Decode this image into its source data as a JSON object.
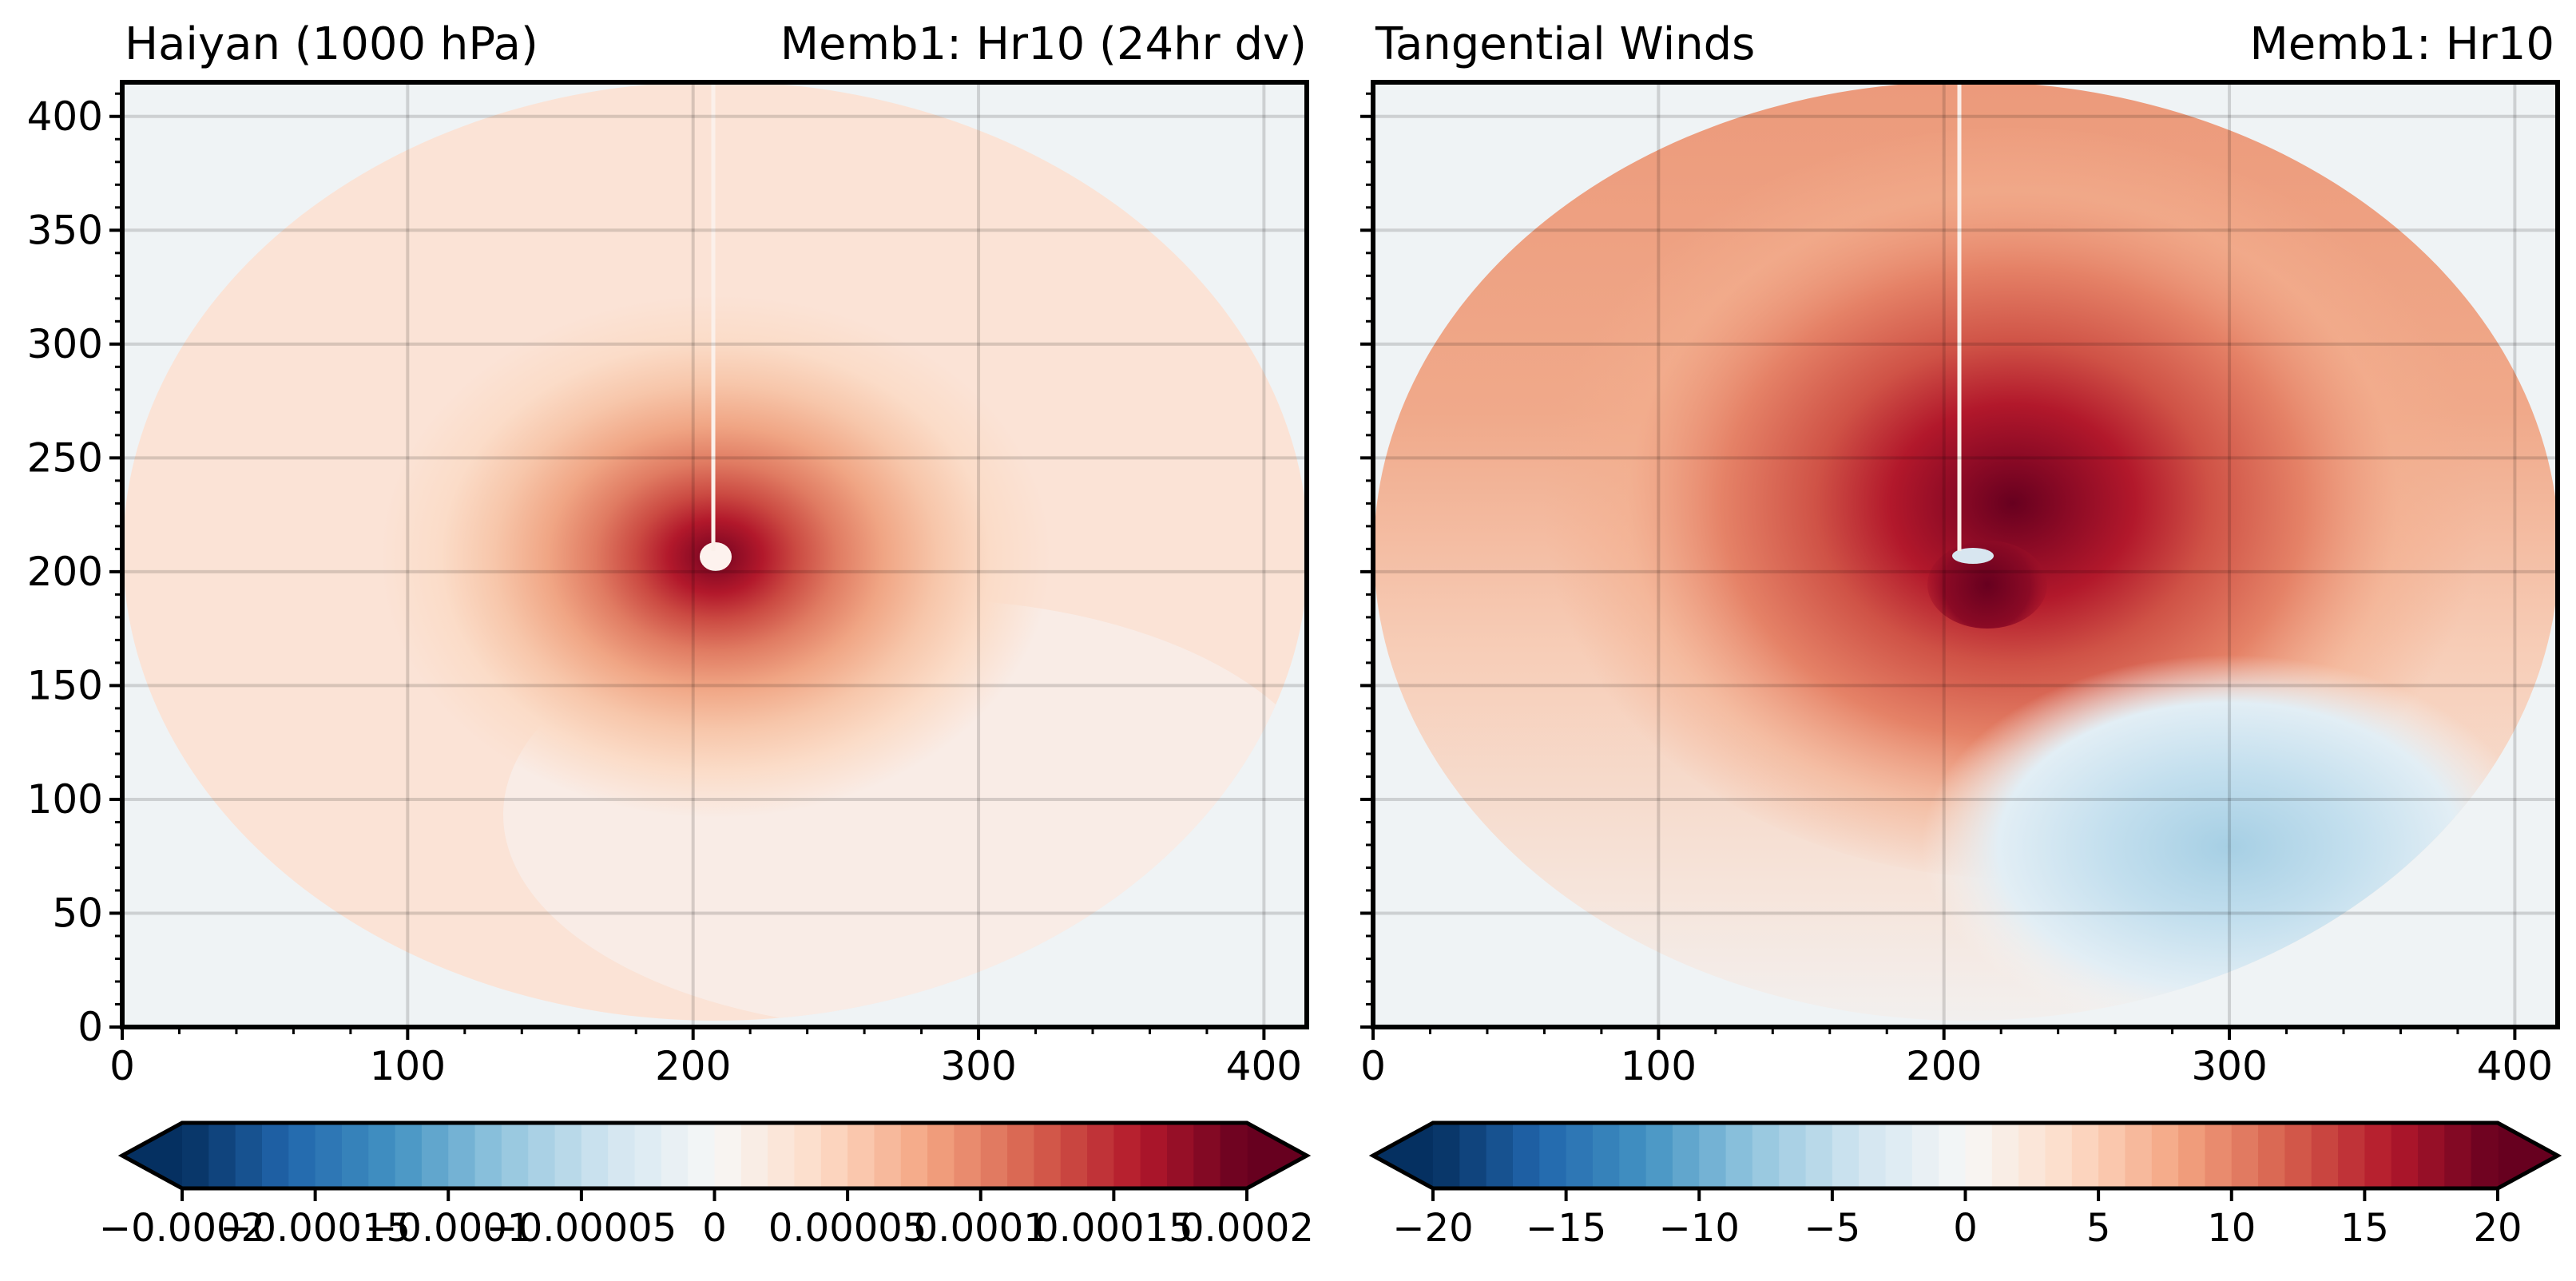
{
  "chart_data": [
    {
      "type": "heatmap",
      "title_left": "Haiyan (1000 hPa)",
      "title_right": "Memb1: Hr10 (24hr dv)",
      "xlabel": "",
      "ylabel": "",
      "xlim": [
        0,
        415
      ],
      "ylim": [
        0,
        415
      ],
      "x_ticks": [
        "0",
        "100",
        "200",
        "300",
        "400"
      ],
      "y_ticks": [
        "0",
        "50",
        "100",
        "150",
        "200",
        "250",
        "300",
        "350",
        "400"
      ],
      "grid": true,
      "colormap": "RdBu_r",
      "colorbar": {
        "range": [
          -0.0002,
          0.0002
        ],
        "ticks": [
          "-0.0002",
          "-0.00015",
          "-0.0001",
          "-0.00005",
          "0",
          "0.00005",
          "0.0001",
          "0.00015",
          "0.0002"
        ],
        "extend": "both",
        "levels": 40
      },
      "field": {
        "center": [
          207,
          205
        ],
        "peak_value": 0.0002,
        "domain_radius": 205,
        "background_value": 1e-05
      }
    },
    {
      "type": "heatmap",
      "title_left": "Tangential Winds",
      "title_right": "Memb1: Hr10",
      "xlabel": "",
      "ylabel": "",
      "xlim": [
        0,
        415
      ],
      "ylim": [
        0,
        415
      ],
      "x_ticks": [
        "0",
        "100",
        "200",
        "300",
        "400"
      ],
      "y_ticks": [],
      "grid": true,
      "colormap": "RdBu_r",
      "colorbar": {
        "range": [
          -20,
          20
        ],
        "ticks": [
          "-20",
          "-15",
          "-10",
          "-5",
          "0",
          "5",
          "10",
          "15",
          "20"
        ],
        "extend": "both",
        "levels": 40
      },
      "field": {
        "center": [
          210,
          205
        ],
        "max_value": 20,
        "max_location": [
          230,
          220
        ],
        "min_value": -5,
        "min_location": [
          305,
          70
        ],
        "domain_radius": 205
      }
    }
  ]
}
